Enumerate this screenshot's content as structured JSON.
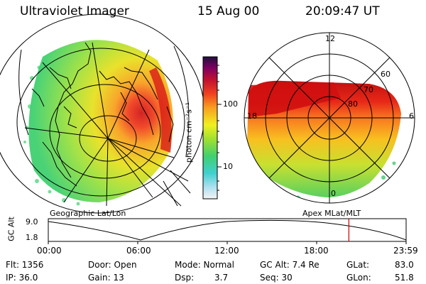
{
  "header": {
    "title": "Ultraviolet Imager",
    "date": "15 Aug 00",
    "time": "20:09:47 UT"
  },
  "colorbar": {
    "label": "photon cm⁻²s⁻¹",
    "ticks": [
      "100",
      "10"
    ]
  },
  "left_panel": {
    "caption": "Geographic Lat/Lon"
  },
  "right_panel": {
    "caption": "Apex MLat/MLT",
    "mlt_labels": {
      "top": "12",
      "left": "18",
      "right": "6",
      "bottom": "0"
    },
    "lat_labels": [
      "60",
      "70",
      "80"
    ]
  },
  "altitude_plot": {
    "ylabel": "GC Alt",
    "yticks": [
      "9.0",
      "1.8"
    ],
    "xticks": [
      "00:00",
      "06:00",
      "12:00",
      "18:00",
      "23:59"
    ],
    "current_time_fraction": 0.84,
    "marker_color": "#cc0000"
  },
  "info": {
    "flt": "Flt: 1356",
    "ip": "IP: 36.0",
    "door": "Door: Open",
    "gain": "Gain: 13",
    "mode": "Mode: Normal",
    "dsp": "Dsp:",
    "dsp_value": "3.7",
    "gc_alt": "GC Alt: 7.4 Re",
    "seq": "Seq: 30",
    "glat": "GLat:",
    "glat_value": "83.0",
    "glon": "GLon:",
    "glon_value": "51.8"
  }
}
